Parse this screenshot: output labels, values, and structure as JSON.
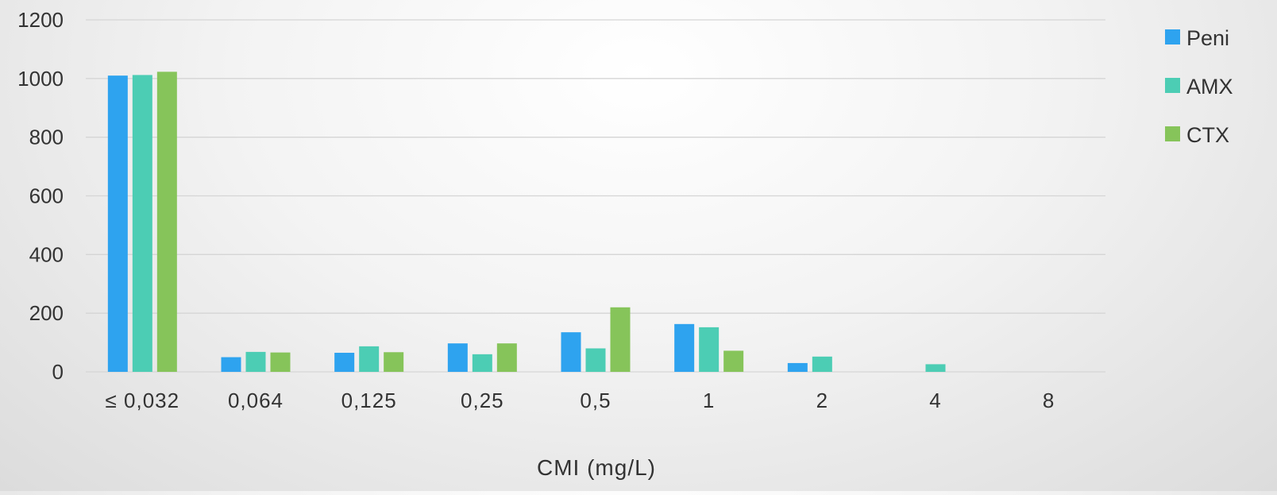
{
  "chart_data": {
    "type": "bar",
    "title": "",
    "xlabel": "CMI (mg/L)",
    "ylabel": "",
    "ylim": [
      0,
      1200
    ],
    "yticks": [
      0,
      200,
      400,
      600,
      800,
      1000,
      1200
    ],
    "grid": true,
    "legend_position": "right",
    "categories": [
      "≤ 0,032",
      "0,064",
      "0,125",
      "0,25",
      "0,5",
      "1",
      "2",
      "4",
      "8"
    ],
    "series": [
      {
        "name": "Peni",
        "color": "#2ea3ef",
        "values": [
          1010,
          50,
          65,
          97,
          135,
          163,
          30,
          0,
          0
        ]
      },
      {
        "name": "AMX",
        "color": "#4ccdb4",
        "values": [
          1012,
          68,
          87,
          60,
          80,
          152,
          52,
          26,
          0
        ]
      },
      {
        "name": "CTX",
        "color": "#86c45a",
        "values": [
          1023,
          66,
          67,
          97,
          220,
          72,
          0,
          0,
          0
        ]
      }
    ]
  }
}
